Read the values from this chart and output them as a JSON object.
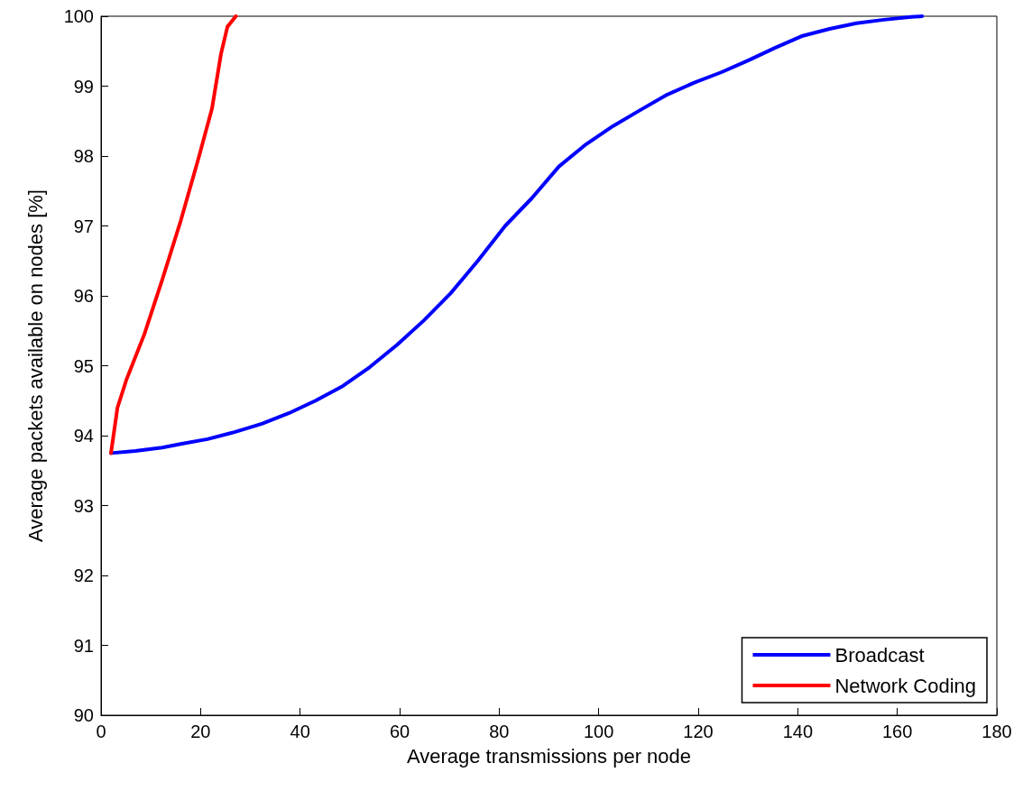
{
  "chart_data": {
    "type": "line",
    "xlabel": "Average transmissions per node",
    "ylabel": "Average packets available on nodes [%]",
    "xlim": [
      0,
      180
    ],
    "xticks": [
      0,
      20,
      40,
      60,
      80,
      100,
      120,
      140,
      160,
      180
    ],
    "ylim": [
      90,
      100
    ],
    "yticks": [
      90,
      91,
      92,
      93,
      94,
      95,
      96,
      97,
      98,
      99,
      100
    ],
    "grid": false,
    "legend": "bottom right",
    "marker": "none",
    "line_style": "solid",
    "series": [
      {
        "name": "Broadcast",
        "color": "#0000ff",
        "x": [
          2,
          6.9,
          12.3,
          16,
          21.4,
          26.8,
          32.3,
          37.7,
          43.1,
          48.6,
          54,
          59.5,
          64.9,
          70.3,
          75.7,
          81.2,
          86.6,
          92,
          97.5,
          102.9,
          108.4,
          113.8,
          119.2,
          124.7,
          130.1,
          135.5,
          141,
          146.4,
          151.8,
          157.3,
          162.8,
          165
        ],
        "values": [
          93.75,
          93.78,
          93.83,
          93.88,
          93.95,
          94.05,
          94.17,
          94.32,
          94.5,
          94.71,
          94.98,
          95.3,
          95.65,
          96.04,
          96.5,
          97.0,
          97.4,
          97.85,
          98.17,
          98.43,
          98.66,
          98.88,
          99.05,
          99.2,
          99.37,
          99.55,
          99.72,
          99.82,
          99.9,
          99.95,
          99.99,
          100
        ]
      },
      {
        "name": "Network Coding",
        "color": "#ff0000",
        "x": [
          2,
          3.3,
          5.1,
          8.7,
          12.3,
          16,
          19.6,
          22.3,
          24.1,
          25.4,
          27.1
        ],
        "values": [
          93.75,
          94.4,
          94.8,
          95.45,
          96.23,
          97.07,
          97.97,
          98.68,
          99.46,
          99.85,
          100
        ]
      }
    ]
  }
}
